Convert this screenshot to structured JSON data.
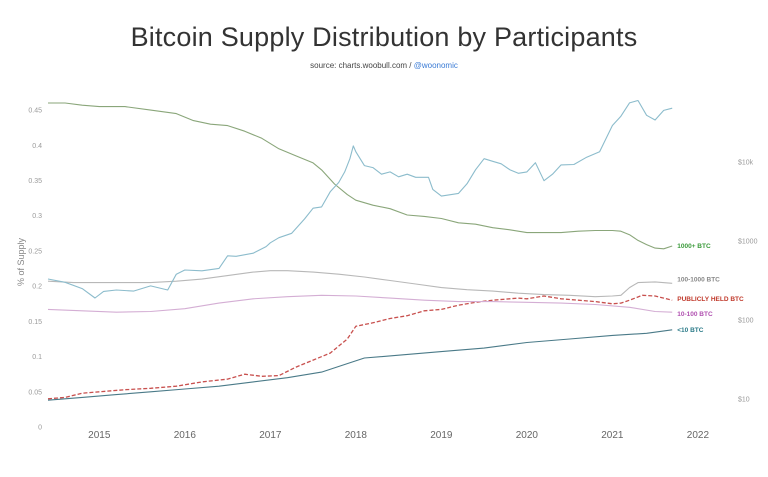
{
  "header": {
    "title": "Bitcoin Supply Distribution by Participants",
    "source_prefix": "source: charts.woobull.com / ",
    "source_handle": "@woonomic"
  },
  "chart_data": {
    "type": "line",
    "title": "Bitcoin Supply Distribution by Participants",
    "xlabel": "",
    "ylabel": "% of Supply",
    "xlim": [
      2014.4,
      2022.2
    ],
    "ylim": [
      0,
      0.47
    ],
    "x_ticks": [
      "2015",
      "2016",
      "2017",
      "2018",
      "2019",
      "2020",
      "2021",
      "2022"
    ],
    "y_ticks": [
      "0",
      "0.05",
      "0.1",
      "0.15",
      "0.2",
      "0.25",
      "0.3",
      "0.35",
      "0.4",
      "0.45"
    ],
    "y2_scale": "log",
    "y2_ticks": [
      {
        "label": "$10",
        "value": 10
      },
      {
        "label": "$100",
        "value": 100
      },
      {
        "label": "$1000",
        "value": 1000
      },
      {
        "label": "$10k",
        "value": 10000
      }
    ],
    "series": [
      {
        "name": "1000+ BTC",
        "color": "#8aa67a",
        "label_color": "#3a9a3a",
        "axis": "left",
        "style": "solid",
        "points": [
          [
            2014.4,
            0.46
          ],
          [
            2014.6,
            0.46
          ],
          [
            2014.8,
            0.457
          ],
          [
            2015.0,
            0.455
          ],
          [
            2015.3,
            0.455
          ],
          [
            2015.6,
            0.45
          ],
          [
            2015.9,
            0.445
          ],
          [
            2016.1,
            0.435
          ],
          [
            2016.3,
            0.43
          ],
          [
            2016.5,
            0.428
          ],
          [
            2016.7,
            0.42
          ],
          [
            2016.9,
            0.41
          ],
          [
            2017.1,
            0.395
          ],
          [
            2017.3,
            0.385
          ],
          [
            2017.5,
            0.375
          ],
          [
            2017.6,
            0.365
          ],
          [
            2017.75,
            0.345
          ],
          [
            2017.9,
            0.33
          ],
          [
            2018.0,
            0.322
          ],
          [
            2018.2,
            0.315
          ],
          [
            2018.4,
            0.31
          ],
          [
            2018.6,
            0.301
          ],
          [
            2018.8,
            0.299
          ],
          [
            2019.0,
            0.296
          ],
          [
            2019.2,
            0.29
          ],
          [
            2019.4,
            0.288
          ],
          [
            2019.6,
            0.283
          ],
          [
            2019.8,
            0.28
          ],
          [
            2020.0,
            0.276
          ],
          [
            2020.2,
            0.276
          ],
          [
            2020.4,
            0.276
          ],
          [
            2020.6,
            0.278
          ],
          [
            2020.8,
            0.279
          ],
          [
            2021.0,
            0.279
          ],
          [
            2021.1,
            0.278
          ],
          [
            2021.2,
            0.273
          ],
          [
            2021.3,
            0.265
          ],
          [
            2021.4,
            0.259
          ],
          [
            2021.5,
            0.254
          ],
          [
            2021.6,
            0.253
          ],
          [
            2021.7,
            0.257
          ]
        ]
      },
      {
        "name": "100-1000 BTC",
        "color": "#b8b8b8",
        "label_color": "#888888",
        "axis": "left",
        "style": "solid",
        "points": [
          [
            2014.4,
            0.207
          ],
          [
            2014.7,
            0.205
          ],
          [
            2015.0,
            0.205
          ],
          [
            2015.3,
            0.205
          ],
          [
            2015.6,
            0.205
          ],
          [
            2015.9,
            0.207
          ],
          [
            2016.2,
            0.21
          ],
          [
            2016.5,
            0.215
          ],
          [
            2016.8,
            0.22
          ],
          [
            2017.0,
            0.222
          ],
          [
            2017.2,
            0.222
          ],
          [
            2017.5,
            0.22
          ],
          [
            2017.8,
            0.217
          ],
          [
            2018.1,
            0.213
          ],
          [
            2018.4,
            0.208
          ],
          [
            2018.7,
            0.203
          ],
          [
            2019.0,
            0.198
          ],
          [
            2019.3,
            0.195
          ],
          [
            2019.6,
            0.193
          ],
          [
            2019.9,
            0.19
          ],
          [
            2020.2,
            0.188
          ],
          [
            2020.5,
            0.187
          ],
          [
            2020.8,
            0.185
          ],
          [
            2021.0,
            0.186
          ],
          [
            2021.1,
            0.187
          ],
          [
            2021.2,
            0.198
          ],
          [
            2021.3,
            0.205
          ],
          [
            2021.5,
            0.206
          ],
          [
            2021.7,
            0.204
          ]
        ]
      },
      {
        "name": "PUBLICLY HELD BTC",
        "color": "#c8504e",
        "label_color": "#c0392b",
        "axis": "left",
        "style": "dashed",
        "points": [
          [
            2014.4,
            0.04
          ],
          [
            2014.6,
            0.042
          ],
          [
            2014.8,
            0.048
          ],
          [
            2015.0,
            0.05
          ],
          [
            2015.3,
            0.053
          ],
          [
            2015.6,
            0.055
          ],
          [
            2015.9,
            0.058
          ],
          [
            2016.2,
            0.064
          ],
          [
            2016.5,
            0.068
          ],
          [
            2016.7,
            0.075
          ],
          [
            2016.9,
            0.072
          ],
          [
            2017.1,
            0.073
          ],
          [
            2017.3,
            0.085
          ],
          [
            2017.5,
            0.095
          ],
          [
            2017.7,
            0.105
          ],
          [
            2017.9,
            0.125
          ],
          [
            2018.0,
            0.143
          ],
          [
            2018.2,
            0.148
          ],
          [
            2018.4,
            0.154
          ],
          [
            2018.6,
            0.158
          ],
          [
            2018.8,
            0.165
          ],
          [
            2019.0,
            0.167
          ],
          [
            2019.2,
            0.173
          ],
          [
            2019.4,
            0.177
          ],
          [
            2019.6,
            0.18
          ],
          [
            2019.8,
            0.182
          ],
          [
            2019.9,
            0.183
          ],
          [
            2020.0,
            0.182
          ],
          [
            2020.1,
            0.184
          ],
          [
            2020.2,
            0.186
          ],
          [
            2020.3,
            0.184
          ],
          [
            2020.4,
            0.182
          ],
          [
            2020.6,
            0.18
          ],
          [
            2020.8,
            0.178
          ],
          [
            2021.0,
            0.175
          ],
          [
            2021.1,
            0.176
          ],
          [
            2021.2,
            0.18
          ],
          [
            2021.35,
            0.187
          ],
          [
            2021.5,
            0.186
          ],
          [
            2021.6,
            0.183
          ],
          [
            2021.7,
            0.18
          ]
        ]
      },
      {
        "name": "10-100 BTC",
        "color": "#d4aed4",
        "label_color": "#b050b0",
        "axis": "left",
        "style": "solid",
        "points": [
          [
            2014.4,
            0.167
          ],
          [
            2014.8,
            0.165
          ],
          [
            2015.2,
            0.163
          ],
          [
            2015.6,
            0.164
          ],
          [
            2016.0,
            0.168
          ],
          [
            2016.4,
            0.176
          ],
          [
            2016.8,
            0.182
          ],
          [
            2017.2,
            0.185
          ],
          [
            2017.6,
            0.187
          ],
          [
            2018.0,
            0.186
          ],
          [
            2018.4,
            0.183
          ],
          [
            2018.8,
            0.18
          ],
          [
            2019.2,
            0.178
          ],
          [
            2019.6,
            0.178
          ],
          [
            2020.0,
            0.177
          ],
          [
            2020.4,
            0.176
          ],
          [
            2020.8,
            0.174
          ],
          [
            2021.2,
            0.17
          ],
          [
            2021.5,
            0.164
          ],
          [
            2021.7,
            0.163
          ]
        ]
      },
      {
        "name": "<10 BTC",
        "color": "#4a7a88",
        "label_color": "#2a7a88",
        "axis": "left",
        "style": "solid",
        "points": [
          [
            2014.4,
            0.038
          ],
          [
            2014.8,
            0.042
          ],
          [
            2015.2,
            0.046
          ],
          [
            2015.6,
            0.05
          ],
          [
            2016.0,
            0.054
          ],
          [
            2016.4,
            0.058
          ],
          [
            2016.8,
            0.064
          ],
          [
            2017.2,
            0.07
          ],
          [
            2017.6,
            0.078
          ],
          [
            2017.9,
            0.09
          ],
          [
            2018.1,
            0.098
          ],
          [
            2018.5,
            0.102
          ],
          [
            2019.0,
            0.107
          ],
          [
            2019.5,
            0.112
          ],
          [
            2020.0,
            0.12
          ],
          [
            2020.5,
            0.125
          ],
          [
            2021.0,
            0.13
          ],
          [
            2021.4,
            0.133
          ],
          [
            2021.7,
            0.138
          ]
        ]
      },
      {
        "name": "",
        "color": "#8cbccc",
        "axis": "right",
        "style": "solid",
        "points": [
          [
            2014.4,
            330
          ],
          [
            2014.6,
            300
          ],
          [
            2014.8,
            250
          ],
          [
            2014.95,
            190
          ],
          [
            2015.05,
            230
          ],
          [
            2015.2,
            240
          ],
          [
            2015.4,
            232
          ],
          [
            2015.6,
            270
          ],
          [
            2015.8,
            240
          ],
          [
            2015.9,
            380
          ],
          [
            2016.0,
            430
          ],
          [
            2016.2,
            420
          ],
          [
            2016.4,
            450
          ],
          [
            2016.5,
            650
          ],
          [
            2016.6,
            640
          ],
          [
            2016.8,
            700
          ],
          [
            2016.95,
            850
          ],
          [
            2017.0,
            950
          ],
          [
            2017.1,
            1100
          ],
          [
            2017.25,
            1250
          ],
          [
            2017.4,
            1900
          ],
          [
            2017.5,
            2600
          ],
          [
            2017.6,
            2700
          ],
          [
            2017.7,
            4200
          ],
          [
            2017.8,
            5500
          ],
          [
            2017.87,
            7500
          ],
          [
            2017.93,
            11000
          ],
          [
            2017.97,
            16000
          ],
          [
            2018.0,
            13500
          ],
          [
            2018.1,
            9000
          ],
          [
            2018.2,
            8500
          ],
          [
            2018.3,
            7000
          ],
          [
            2018.4,
            7500
          ],
          [
            2018.5,
            6500
          ],
          [
            2018.6,
            7000
          ],
          [
            2018.7,
            6400
          ],
          [
            2018.85,
            6400
          ],
          [
            2018.9,
            4500
          ],
          [
            2019.0,
            3700
          ],
          [
            2019.2,
            4000
          ],
          [
            2019.3,
            5300
          ],
          [
            2019.4,
            8000
          ],
          [
            2019.5,
            11000
          ],
          [
            2019.6,
            10200
          ],
          [
            2019.7,
            9500
          ],
          [
            2019.8,
            8000
          ],
          [
            2019.9,
            7200
          ],
          [
            2020.0,
            7500
          ],
          [
            2020.1,
            9800
          ],
          [
            2020.2,
            5800
          ],
          [
            2020.3,
            7000
          ],
          [
            2020.4,
            9200
          ],
          [
            2020.55,
            9300
          ],
          [
            2020.7,
            11500
          ],
          [
            2020.85,
            13500
          ],
          [
            2021.0,
            29000
          ],
          [
            2021.1,
            38000
          ],
          [
            2021.2,
            56000
          ],
          [
            2021.3,
            60000
          ],
          [
            2021.4,
            39000
          ],
          [
            2021.5,
            34000
          ],
          [
            2021.6,
            45000
          ],
          [
            2021.7,
            48000
          ]
        ]
      }
    ]
  }
}
